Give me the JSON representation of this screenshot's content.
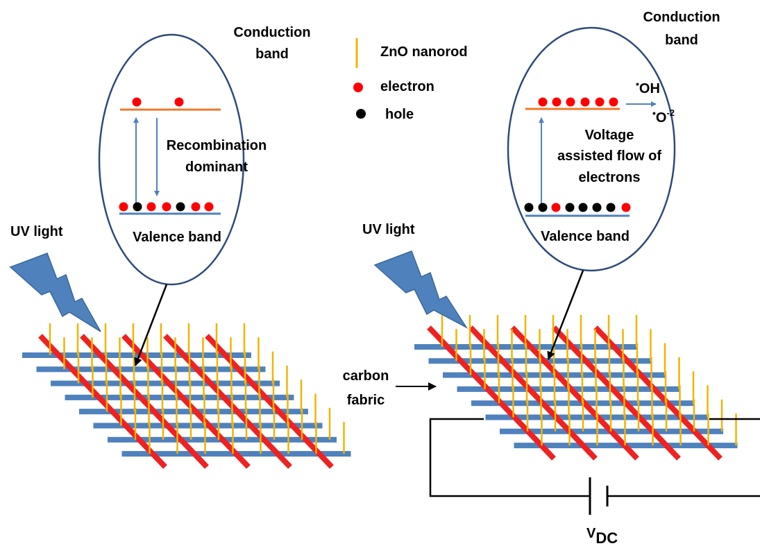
{
  "left_panel": {
    "conduction_band": [
      "Conduction",
      "band"
    ],
    "annotation": [
      "Recombination",
      "dominant"
    ],
    "valence_band": "Valence band",
    "light": "UV light"
  },
  "legend": {
    "items": [
      "ZnO nanorod",
      "electron",
      "hole"
    ]
  },
  "right_panel": {
    "conduction_band": [
      "Conduction",
      "band"
    ],
    "species": [
      {
        "radical": "•",
        "formula": "OH"
      },
      {
        "radical": "•",
        "formula": "O",
        "charge": "-2"
      }
    ],
    "annotation": [
      "Voltage",
      "assisted flow of",
      "electrons"
    ],
    "valence_band": "Valence band",
    "light": "UV light",
    "substrate_label": [
      "carbon",
      "fabric"
    ],
    "voltage": {
      "symbol": "V",
      "subscript": "DC"
    }
  }
}
